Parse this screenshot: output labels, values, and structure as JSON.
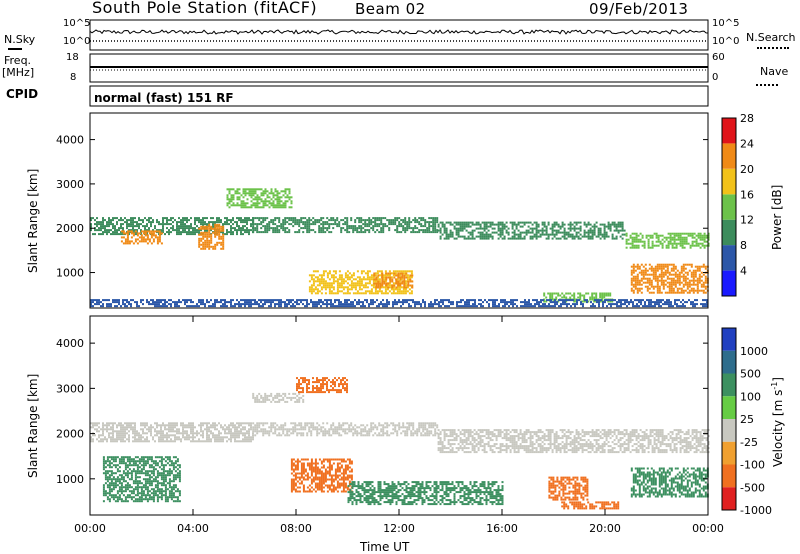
{
  "header": {
    "station": "South Pole Station (fitACF)",
    "beam": "Beam 02",
    "date": "09/Feb/2013"
  },
  "panels": {
    "nsky": {
      "label": "N.Sky",
      "left_top": "10^5",
      "left_bottom": "10^0",
      "right_top": "10^5",
      "right_bottom": "10^0",
      "right_label": "N.Search"
    },
    "freq": {
      "label_line1": "Freq.",
      "label_line2": "[MHz]",
      "left_top": "18",
      "left_bottom": "8",
      "right_top": "60",
      "right_bottom": "0",
      "right_label": "Nave"
    },
    "cpid": {
      "label": "CPID",
      "value": "normal (fast) 151 RF"
    }
  },
  "chart_data": [
    {
      "type": "heatmap",
      "title": "",
      "ylabel": "Slant Range [km]",
      "xlabel": "",
      "ylim": [
        200,
        4600
      ],
      "xlim": [
        0,
        24
      ],
      "y_ticks": [
        "1000",
        "2000",
        "3000",
        "4000"
      ],
      "colorbar": {
        "label": "Power [dB]",
        "levels": [
          "4",
          "8",
          "12",
          "16",
          "20",
          "24",
          "28"
        ],
        "colors": [
          "#1a1aff",
          "#2c57a8",
          "#3c8c5c",
          "#6cc24a",
          "#f2c21a",
          "#f08a17",
          "#e0141a"
        ]
      },
      "bands": [
        {
          "x0": 0.0,
          "x1": 6.3,
          "y0": 1850,
          "y1": 2250,
          "value": 10
        },
        {
          "x0": 6.3,
          "x1": 13.5,
          "y0": 1900,
          "y1": 2250,
          "value": 9
        },
        {
          "x0": 13.5,
          "x1": 20.8,
          "y0": 1750,
          "y1": 2150,
          "value": 11
        },
        {
          "x0": 20.8,
          "x1": 24.0,
          "y0": 1550,
          "y1": 1900,
          "value": 14
        },
        {
          "x0": 1.2,
          "x1": 2.8,
          "y0": 1650,
          "y1": 1950,
          "value": 20
        },
        {
          "x0": 4.2,
          "x1": 5.2,
          "y0": 1550,
          "y1": 2100,
          "value": 22
        },
        {
          "x0": 8.5,
          "x1": 12.5,
          "y0": 550,
          "y1": 1050,
          "value": 16
        },
        {
          "x0": 11.0,
          "x1": 12.5,
          "y0": 650,
          "y1": 1000,
          "value": 21
        },
        {
          "x0": 21.0,
          "x1": 24.0,
          "y0": 550,
          "y1": 1200,
          "value": 22
        },
        {
          "x0": 17.6,
          "x1": 20.3,
          "y0": 350,
          "y1": 550,
          "value": 14
        },
        {
          "x0": 5.3,
          "x1": 7.8,
          "y0": 2450,
          "y1": 2900,
          "value": 12
        },
        {
          "x0": 0.0,
          "x1": 24.0,
          "y0": 250,
          "y1": 400,
          "value": 7
        }
      ]
    },
    {
      "type": "heatmap",
      "title": "",
      "ylabel": "Slant Range [km]",
      "xlabel": "Time UT",
      "ylim": [
        200,
        4600
      ],
      "xlim": [
        0,
        24
      ],
      "x_ticks": [
        "00:00",
        "04:00",
        "08:00",
        "12:00",
        "16:00",
        "20:00",
        "00:00"
      ],
      "y_ticks": [
        "1000",
        "2000",
        "3000",
        "4000"
      ],
      "colorbar": {
        "label": "Velocity [m s^-1]",
        "levels": [
          "1000",
          "500",
          "100",
          "25",
          "-25",
          "-100",
          "-500",
          "-1000"
        ],
        "colors": [
          "#2040c0",
          "#2e6d8c",
          "#3c9060",
          "#66cc44",
          "#c8c8c0",
          "#f0a030",
          "#f07020",
          "#e02020"
        ]
      },
      "bands": [
        {
          "x0": 0.0,
          "x1": 6.3,
          "y0": 1850,
          "y1": 2250,
          "value": 0
        },
        {
          "x0": 6.3,
          "x1": 13.5,
          "y0": 1950,
          "y1": 2250,
          "value": 0
        },
        {
          "x0": 13.5,
          "x1": 24.0,
          "y0": 1600,
          "y1": 2100,
          "value": 0
        },
        {
          "x0": 0.5,
          "x1": 3.5,
          "y0": 500,
          "y1": 1500,
          "value": 300
        },
        {
          "x0": 7.8,
          "x1": 10.2,
          "y0": 700,
          "y1": 1450,
          "value": -300
        },
        {
          "x0": 10.0,
          "x1": 16.0,
          "y0": 450,
          "y1": 950,
          "value": 350
        },
        {
          "x0": 17.8,
          "x1": 19.3,
          "y0": 550,
          "y1": 1050,
          "value": -250
        },
        {
          "x0": 18.3,
          "x1": 20.5,
          "y0": 350,
          "y1": 500,
          "value": -500
        },
        {
          "x0": 21.0,
          "x1": 24.0,
          "y0": 600,
          "y1": 1250,
          "value": 300
        },
        {
          "x0": 6.3,
          "x1": 8.3,
          "y0": 2700,
          "y1": 2900,
          "value": 0
        },
        {
          "x0": 8.0,
          "x1": 10.0,
          "y0": 2900,
          "y1": 3250,
          "value": -200
        }
      ]
    }
  ]
}
